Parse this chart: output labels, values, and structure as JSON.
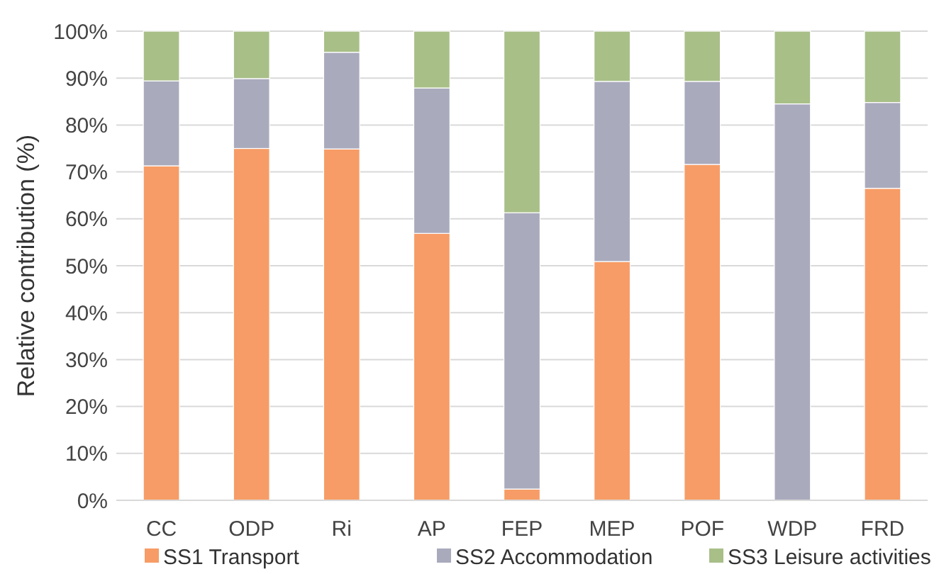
{
  "chart_data": {
    "type": "bar",
    "stacked": true,
    "ylabel": "Relative contribution (%)",
    "categories": [
      "CC",
      "ODP",
      "Ri",
      "AP",
      "FEP",
      "MEP",
      "POF",
      "WDP",
      "FRD"
    ],
    "series": [
      {
        "name": "SS1 Transport",
        "color": "#f79c66",
        "values": [
          71.3,
          75.0,
          74.9,
          56.9,
          2.4,
          50.9,
          71.6,
          0,
          66.5
        ]
      },
      {
        "name": "SS2 Accommodation",
        "color": "#aaaabd",
        "values": [
          18.1,
          14.9,
          20.6,
          31.0,
          58.9,
          38.4,
          17.7,
          84.5,
          18.3
        ]
      },
      {
        "name": "SS3 Leisure activities",
        "color": "#a8bf88",
        "values": [
          10.6,
          10.1,
          4.5,
          12.1,
          38.7,
          10.7,
          10.7,
          15.5,
          15.2
        ]
      }
    ],
    "ylim": [
      0,
      100
    ],
    "yticks": [
      {
        "value": 0,
        "label": "0%"
      },
      {
        "value": 10,
        "label": "10%"
      },
      {
        "value": 20,
        "label": "20%"
      },
      {
        "value": 30,
        "label": "30%"
      },
      {
        "value": 40,
        "label": "40%"
      },
      {
        "value": 50,
        "label": "50%"
      },
      {
        "value": 60,
        "label": "60%"
      },
      {
        "value": 70,
        "label": "70%"
      },
      {
        "value": 80,
        "label": "80%"
      },
      {
        "value": 90,
        "label": "90%"
      },
      {
        "value": 100,
        "label": "100%"
      }
    ],
    "grid": "y",
    "legend": "bottom"
  }
}
